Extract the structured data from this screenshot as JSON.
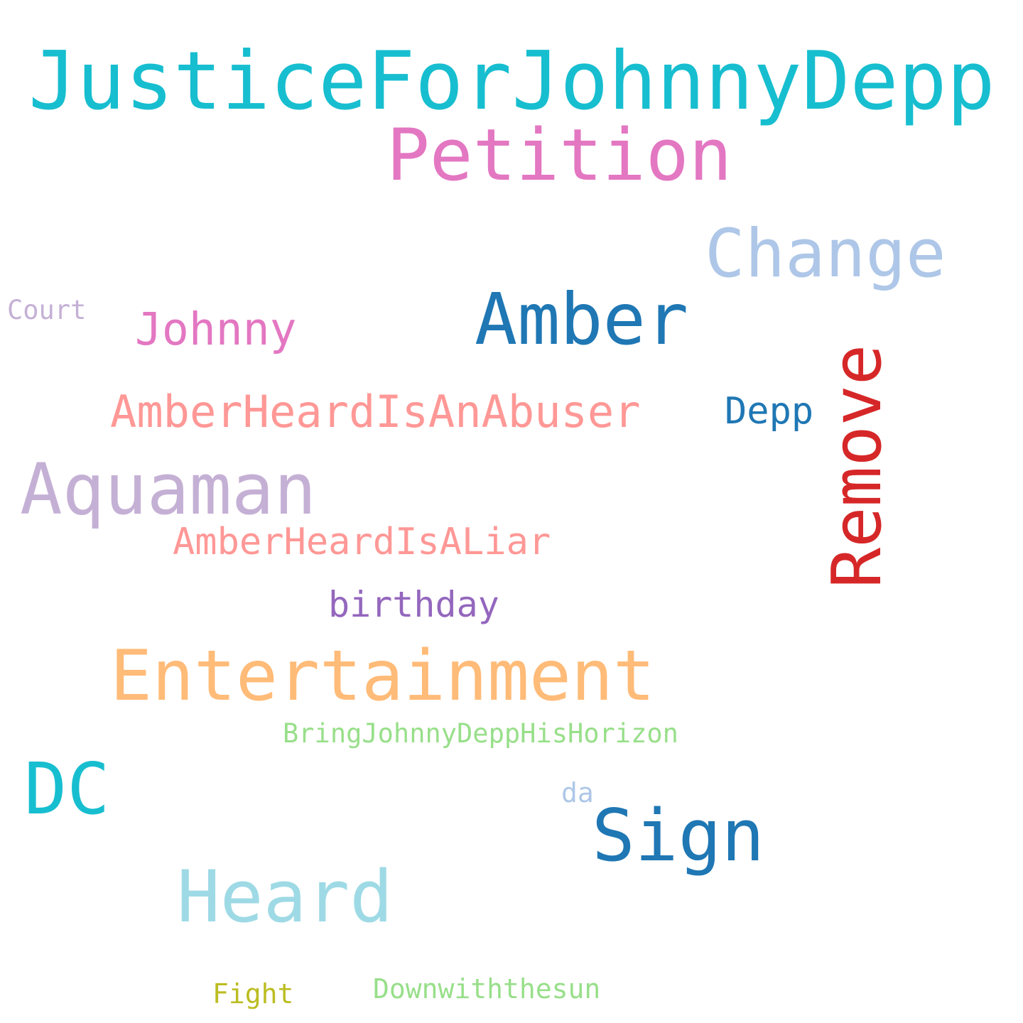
{
  "colors": {
    "background": "#ffffff"
  },
  "words": [
    {
      "key": "justice",
      "text": "JusticeForJohnnyDepp",
      "color": "#17becf",
      "orientation": "horizontal"
    },
    {
      "key": "petition",
      "text": "Petition",
      "color": "#e377c2",
      "orientation": "horizontal"
    },
    {
      "key": "change",
      "text": "Change",
      "color": "#aec7e8",
      "orientation": "horizontal"
    },
    {
      "key": "amber",
      "text": "Amber",
      "color": "#1f77b4",
      "orientation": "horizontal"
    },
    {
      "key": "court",
      "text": "Court",
      "color": "#c5b0d5",
      "orientation": "horizontal"
    },
    {
      "key": "johnny",
      "text": "Johnny",
      "color": "#e377c2",
      "orientation": "horizontal"
    },
    {
      "key": "remove",
      "text": "Remove",
      "color": "#d62728",
      "orientation": "vertical"
    },
    {
      "key": "aheard",
      "text": "AmberHeardIsAnAbuser",
      "color": "#ff9896",
      "orientation": "horizontal"
    },
    {
      "key": "depp",
      "text": "Depp",
      "color": "#1f77b4",
      "orientation": "horizontal"
    },
    {
      "key": "aquaman",
      "text": "Aquaman",
      "color": "#c5b0d5",
      "orientation": "horizontal"
    },
    {
      "key": "liar",
      "text": "AmberHeardIsALiar",
      "color": "#ff9896",
      "orientation": "horizontal"
    },
    {
      "key": "birthday",
      "text": "birthday",
      "color": "#9467bd",
      "orientation": "horizontal"
    },
    {
      "key": "entert",
      "text": "Entertainment",
      "color": "#ffbb78",
      "orientation": "horizontal"
    },
    {
      "key": "bring",
      "text": "BringJohnnyDeppHisHorizon",
      "color": "#98df8a",
      "orientation": "horizontal"
    },
    {
      "key": "dc",
      "text": "DC",
      "color": "#17becf",
      "orientation": "horizontal"
    },
    {
      "key": "da",
      "text": "da",
      "color": "#aec7e8",
      "orientation": "horizontal"
    },
    {
      "key": "sign",
      "text": "Sign",
      "color": "#1f77b4",
      "orientation": "horizontal"
    },
    {
      "key": "heard",
      "text": "Heard",
      "color": "#9edae5",
      "orientation": "horizontal"
    },
    {
      "key": "fight",
      "text": "Fight",
      "color": "#bcbd22",
      "orientation": "horizontal"
    },
    {
      "key": "down",
      "text": "Downwiththesun",
      "color": "#98df8a",
      "orientation": "horizontal"
    }
  ]
}
